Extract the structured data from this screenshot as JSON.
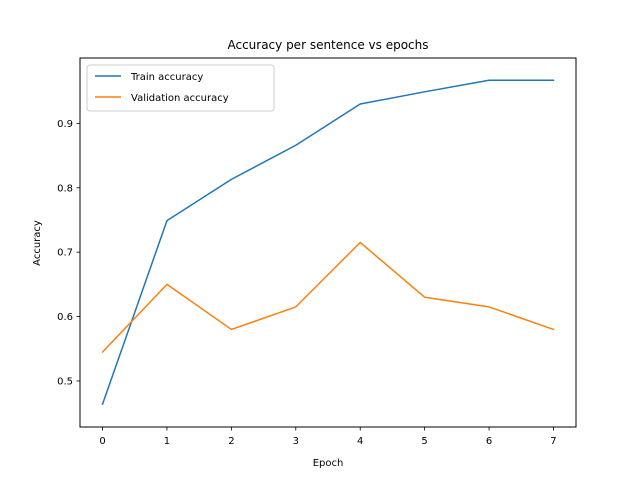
{
  "chart_data": {
    "type": "line",
    "title": "Accuracy per sentence vs epochs",
    "xlabel": "Epoch",
    "ylabel": "Accuracy",
    "x": [
      0,
      1,
      2,
      3,
      4,
      5,
      6,
      7
    ],
    "xlim": [
      -0.35,
      7.35
    ],
    "ylim": [
      0.4285,
      1.0015
    ],
    "xticks": [
      0,
      1,
      2,
      3,
      4,
      5,
      6,
      7
    ],
    "xtick_labels": [
      "0",
      "1",
      "2",
      "3",
      "4",
      "5",
      "6",
      "7"
    ],
    "yticks": [
      0.5,
      0.6,
      0.7,
      0.8,
      0.9
    ],
    "ytick_labels": [
      "0.5",
      "0.6",
      "0.7",
      "0.8",
      "0.9"
    ],
    "grid": false,
    "legend_position": "upper-left",
    "series": [
      {
        "name": "Train accuracy",
        "color": "#1f77b4",
        "values": [
          0.464,
          0.749,
          0.813,
          0.866,
          0.93,
          0.949,
          0.967,
          0.967
        ]
      },
      {
        "name": "Validation accuracy",
        "color": "#ff7f0e",
        "values": [
          0.545,
          0.65,
          0.58,
          0.615,
          0.715,
          0.63,
          0.615,
          0.58
        ]
      }
    ]
  }
}
